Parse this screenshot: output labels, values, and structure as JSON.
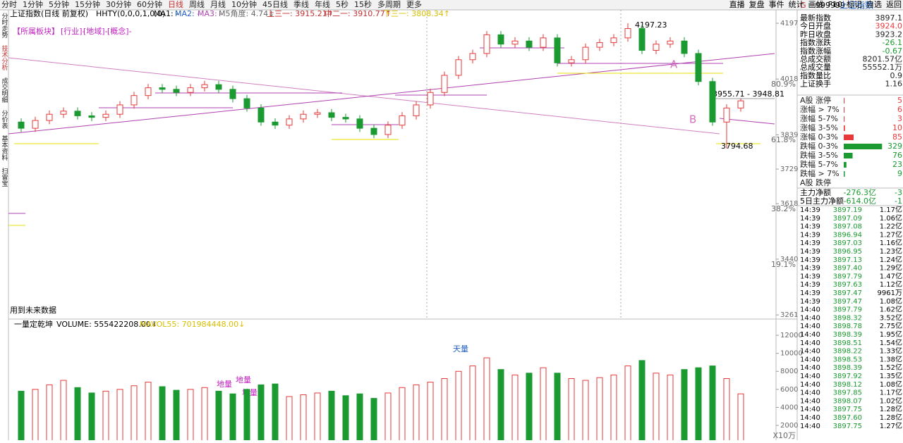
{
  "toolbar": {
    "periods": [
      "分时",
      "1分钟",
      "5分钟",
      "15分钟",
      "30分钟",
      "60分钟",
      "日线",
      "周线",
      "月线",
      "10分钟",
      "45日线",
      "季线",
      "年线",
      "5秒",
      "15秒",
      "多周期",
      "更多"
    ],
    "actions": [
      "直播",
      "复盘",
      "事件",
      "统计",
      "画线",
      "F10",
      "标记",
      "自选",
      "返回"
    ]
  },
  "info": {
    "title": "上证指数(日线 前复权)",
    "indicator": "HHTY(0,0,0,1,0,0)",
    "ma1": "MA1: -",
    "ma2": "MA2: -",
    "ma3": "MA3: -",
    "angle": "M5角度: 4.74↓",
    "upper": "上三一: 3915.21↑",
    "middle": "中二一: 3910.77↑",
    "lower": "下三一: 3808.34↑"
  },
  "sector": [
    "【所属板块】",
    "[行业]-",
    "[地域]-",
    "[概念]-"
  ],
  "side_tabs": [
    "分时走势",
    "技术分析",
    "成交明细",
    "分价表",
    "基本资料",
    "扫雷宝"
  ],
  "price_chart": {
    "ylim": [
      3250,
      4240
    ],
    "yticks": [
      4197,
      4018,
      3839,
      3729,
      3618,
      3440,
      3261
    ],
    "open": [
      3880,
      3860,
      3885,
      3905,
      3915,
      3900,
      3895,
      3905,
      3935,
      3965,
      3990,
      3985,
      3975,
      3990,
      4000,
      3985,
      3955,
      3925,
      3880,
      3870,
      3890,
      3905,
      3910,
      3895,
      3890,
      3860,
      3840,
      3870,
      3900,
      3935,
      3975,
      4030,
      4080,
      4100,
      4160,
      4130,
      4140,
      4120,
      4150,
      4070,
      4080,
      4120,
      4135,
      4150,
      4180,
      4110,
      4130,
      4140,
      4100,
      4010,
      3880,
      3925
    ],
    "close": [
      3860,
      3885,
      3905,
      3915,
      3900,
      3895,
      3905,
      3935,
      3965,
      3990,
      3985,
      3975,
      3990,
      4000,
      3985,
      3955,
      3925,
      3880,
      3870,
      3890,
      3905,
      3910,
      3895,
      3890,
      3860,
      3840,
      3870,
      3900,
      3935,
      3975,
      4030,
      4080,
      4100,
      4160,
      4130,
      4140,
      4120,
      4150,
      4070,
      4080,
      4120,
      4135,
      4150,
      4180,
      4110,
      4130,
      4140,
      4100,
      4010,
      3880,
      3925,
      3948
    ],
    "high": [
      3892,
      3897,
      3917,
      3927,
      3927,
      3912,
      3917,
      3947,
      3977,
      4002,
      4002,
      3997,
      4002,
      4012,
      4012,
      3997,
      3967,
      3937,
      3892,
      3902,
      3917,
      3922,
      3922,
      3907,
      3902,
      3872,
      3882,
      3912,
      3947,
      3987,
      4042,
      4092,
      4112,
      4172,
      4172,
      4152,
      4152,
      4162,
      4162,
      4092,
      4132,
      4147,
      4162,
      4197,
      4192,
      4142,
      4152,
      4152,
      4112,
      4022,
      3937,
      3956
    ],
    "low": [
      3848,
      3848,
      3873,
      3893,
      3888,
      3883,
      3883,
      3893,
      3923,
      3953,
      3973,
      3963,
      3963,
      3978,
      3973,
      3943,
      3913,
      3868,
      3858,
      3858,
      3878,
      3893,
      3883,
      3878,
      3848,
      3828,
      3828,
      3858,
      3888,
      3923,
      3963,
      4018,
      4068,
      4088,
      4118,
      4118,
      4108,
      4108,
      4058,
      4058,
      4068,
      4108,
      4123,
      4138,
      4098,
      4098,
      4118,
      4088,
      3998,
      3868,
      3795,
      3913
    ],
    "fib_labels": [
      "80.9%",
      "61.8%",
      "38.2%",
      "19.1%"
    ],
    "annotations": {
      "high": "4197.23",
      "range": "3955.71 - 3948.81",
      "low": "3794.68",
      "a": "A",
      "b": "B",
      "note": "用到未来数据"
    }
  },
  "volume_chart": {
    "title": "一量定乾坤",
    "volume": "VOLUME: 555422208.00↓",
    "mavol": "MAVOL55: 701984448.00↓",
    "ylim": [
      0,
      13100
    ],
    "yticks": [
      2000,
      4000,
      6000,
      8000,
      10000,
      12000
    ],
    "unit": "X10万",
    "values": [
      5800,
      6000,
      6500,
      7000,
      6200,
      5600,
      5800,
      6000,
      6400,
      6800,
      6300,
      5900,
      6000,
      6200,
      5800,
      5500,
      6000,
      6500,
      6600,
      5200,
      5400,
      5600,
      5800,
      5300,
      5500,
      5000,
      5600,
      6200,
      6500,
      6800,
      7200,
      8000,
      8600,
      9500,
      8200,
      7600,
      7800,
      8400,
      7800,
      7200,
      7000,
      7300,
      7600,
      8600,
      9200,
      7800,
      7600,
      8200,
      8400,
      8600,
      7200,
      5500
    ],
    "labels": [
      "天量",
      "地量",
      "地量",
      "地量"
    ]
  },
  "quote": {
    "code_prefix": "G",
    "code": "999999",
    "name": "上证指数",
    "rows": [
      {
        "label": "最新指数",
        "value": "3897.1"
      },
      {
        "label": "今日开盘",
        "value": "3924.0"
      },
      {
        "label": "昨日收盘",
        "value": "3923.2"
      },
      {
        "label": "指数涨跌",
        "value": "-26.1"
      },
      {
        "label": "指数涨幅",
        "value": "-0.67"
      },
      {
        "label": "总成交额",
        "value": "8201.57亿"
      },
      {
        "label": "总成交量",
        "value": "55552.1万"
      },
      {
        "label": "指数量比",
        "value": "0.9"
      },
      {
        "label": "上证换手",
        "value": "1.16"
      }
    ],
    "breadth": [
      {
        "label": "A股 涨停",
        "value": 5
      },
      {
        "label": "涨幅 > 7%",
        "value": 6
      },
      {
        "label": "涨幅 5-7%",
        "value": 3
      },
      {
        "label": "涨幅 3-5%",
        "value": 10
      },
      {
        "label": "涨幅 0-3%",
        "value": 85
      },
      {
        "label": "跌幅 0-3%",
        "value": 329
      },
      {
        "label": "跌幅 3-5%",
        "value": 76
      },
      {
        "label": "跌幅 5-7%",
        "value": 23
      },
      {
        "label": "跌幅 > 7%",
        "value": 9
      },
      {
        "label": "A股 跌停"
      }
    ],
    "flows": [
      {
        "label": "主力净额",
        "value": "-276.3亿",
        "ratio": "-3"
      },
      {
        "label": "5日主力净额",
        "value": "-614.0亿",
        "ratio": "-1"
      }
    ],
    "ticks": [
      {
        "time": "14:39",
        "price": "3897.19",
        "volume": "1.17亿"
      },
      {
        "time": "14:39",
        "price": "3897.09",
        "volume": "1.06亿"
      },
      {
        "time": "14:39",
        "price": "3897.08",
        "volume": "1.22亿"
      },
      {
        "time": "14:39",
        "price": "3896.94",
        "volume": "1.27亿"
      },
      {
        "time": "14:39",
        "price": "3897.03",
        "volume": "1.16亿"
      },
      {
        "time": "14:39",
        "price": "3896.95",
        "volume": "1.23亿"
      },
      {
        "time": "14:39",
        "price": "3897.13",
        "volume": "1.24亿"
      },
      {
        "time": "14:39",
        "price": "3897.40",
        "volume": "1.29亿"
      },
      {
        "time": "14:39",
        "price": "3897.79",
        "volume": "1.47亿"
      },
      {
        "time": "14:39",
        "price": "3897.63",
        "volume": "1.12亿"
      },
      {
        "time": "14:39",
        "price": "3897.47",
        "volume": "9961万"
      },
      {
        "time": "14:39",
        "price": "3897.47",
        "volume": "1.08亿"
      },
      {
        "time": "14:40",
        "price": "3897.79",
        "volume": "1.62亿"
      },
      {
        "time": "14:40",
        "price": "3898.32",
        "volume": "3.52亿"
      },
      {
        "time": "14:40",
        "price": "3898.78",
        "volume": "2.75亿"
      },
      {
        "time": "14:40",
        "price": "3898.39",
        "volume": "1.95亿"
      },
      {
        "time": "14:40",
        "price": "3898.51",
        "volume": "1.54亿"
      },
      {
        "time": "14:40",
        "price": "3898.22",
        "volume": "1.33亿"
      },
      {
        "time": "14:40",
        "price": "3898.53",
        "volume": "1.38亿"
      },
      {
        "time": "14:40",
        "price": "3898.39",
        "volume": "1.52亿"
      },
      {
        "time": "14:40",
        "price": "3897.92",
        "volume": "1.35亿"
      },
      {
        "time": "14:40",
        "price": "3898.12",
        "volume": "1.08亿"
      },
      {
        "time": "14:40",
        "price": "3897.85",
        "volume": "1.17亿"
      },
      {
        "time": "14:40",
        "price": "3898.07",
        "volume": "1.02亿"
      },
      {
        "time": "14:40",
        "price": "3897.75",
        "volume": "1.28亿"
      },
      {
        "time": "14:40",
        "price": "3897.60",
        "volume": "1.28亿"
      },
      {
        "time": "14:40",
        "price": "3897.75",
        "volume": "1.27亿"
      }
    ]
  }
}
